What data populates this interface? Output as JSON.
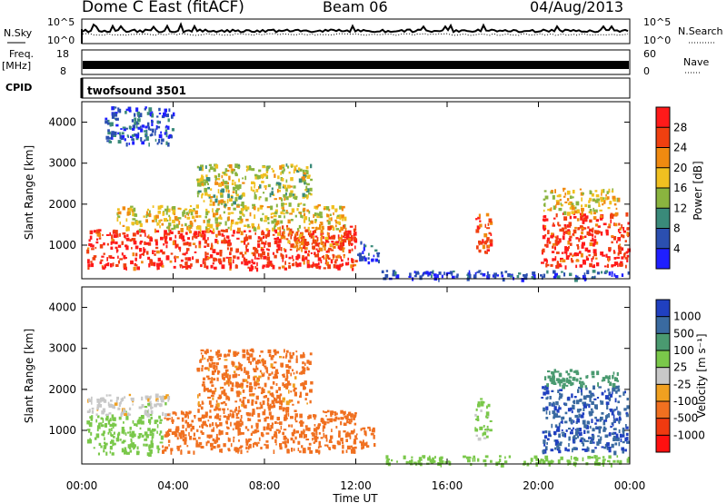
{
  "header": {
    "station": "Dome C East (fitACF)",
    "beam": "Beam 06",
    "date": "04/Aug/2013"
  },
  "strips": {
    "nsky_label": "N.Sky",
    "nsky_top_tick": "10^5",
    "nsky_bottom_tick": "10^0",
    "nsearch_label": "N.Search",
    "nsearch_top_tick": "10^5",
    "nsearch_bottom_tick": "10^0",
    "freq_label": "Freq.",
    "freq_unit": "[MHz]",
    "freq_top_tick": "18",
    "freq_bottom_tick": "8",
    "nave_label": "Nave",
    "nave_top_tick": "60",
    "nave_bottom_tick": "0",
    "cpid_label": "CPID",
    "cpid_value": "twofsound 3501"
  },
  "colorbars": {
    "power": {
      "label": "Power [dB]",
      "ticks": [
        "4",
        "8",
        "12",
        "16",
        "20",
        "24",
        "28"
      ],
      "colors": [
        "#1f1fff",
        "#2b4fb0",
        "#3a8a7a",
        "#8ab43f",
        "#f0c020",
        "#f08a10",
        "#f04010",
        "#ff1a1a"
      ]
    },
    "velocity": {
      "label": "Velocity [m s⁻¹]",
      "ticks": [
        "1000",
        "500",
        "100",
        "25",
        "-25",
        "-100",
        "-500",
        "-1000"
      ],
      "colors": [
        "#2040c0",
        "#3a6aa0",
        "#4a9a70",
        "#7ac84a",
        "#c8c8c8",
        "#f0a020",
        "#f07020",
        "#f03a10",
        "#ff1010"
      ]
    }
  },
  "chart_data": [
    {
      "type": "heatmap",
      "title": "Power",
      "xlabel": "",
      "ylabel": "Slant Range [km]",
      "xlim": [
        0,
        24
      ],
      "ylim": [
        180,
        4500
      ],
      "x_ticks": [
        "00:00",
        "04:00",
        "08:00",
        "12:00",
        "16:00",
        "20:00",
        "00:00"
      ],
      "y_ticks": [
        "1000",
        "2000",
        "3000",
        "4000"
      ],
      "regions": [
        {
          "t0": 0.2,
          "t1": 12.0,
          "r0": 450,
          "r1": 1400,
          "value": 28
        },
        {
          "t0": 1.5,
          "t1": 11.5,
          "r0": 1400,
          "r1": 2000,
          "value": 18
        },
        {
          "t0": 5.0,
          "t1": 10.0,
          "r0": 2000,
          "r1": 3000,
          "value": 16
        },
        {
          "t0": 8.5,
          "t1": 12.0,
          "r0": 900,
          "r1": 1500,
          "value": 24
        },
        {
          "t0": 12.0,
          "t1": 13.0,
          "r0": 600,
          "r1": 1100,
          "value": 6
        },
        {
          "t0": 13.0,
          "t1": 24.0,
          "r0": 200,
          "r1": 400,
          "value": 5
        },
        {
          "t0": 17.2,
          "t1": 17.9,
          "r0": 800,
          "r1": 1800,
          "value": 26
        },
        {
          "t0": 20.1,
          "t1": 23.9,
          "r0": 500,
          "r1": 1800,
          "value": 28
        },
        {
          "t0": 20.2,
          "t1": 23.5,
          "r0": 1800,
          "r1": 2400,
          "value": 18
        },
        {
          "t0": 1.0,
          "t1": 4.0,
          "r0": 3500,
          "r1": 4400,
          "value": 6
        }
      ]
    },
    {
      "type": "heatmap",
      "title": "Velocity",
      "xlabel": "Time UT",
      "ylabel": "Slant Range [km]",
      "xlim": [
        0,
        24
      ],
      "ylim": [
        180,
        4500
      ],
      "x_ticks": [
        "00:00",
        "04:00",
        "08:00",
        "12:00",
        "16:00",
        "20:00",
        "00:00"
      ],
      "y_ticks": [
        "1000",
        "2000",
        "3000",
        "4000"
      ],
      "regions": [
        {
          "t0": 0.2,
          "t1": 3.5,
          "r0": 450,
          "r1": 1400,
          "value": 60
        },
        {
          "t0": 0.2,
          "t1": 4.0,
          "r0": 1400,
          "r1": 1900,
          "value": 0
        },
        {
          "t0": 3.5,
          "t1": 12.0,
          "r0": 500,
          "r1": 1500,
          "value": -200
        },
        {
          "t0": 5.0,
          "t1": 10.0,
          "r0": 1500,
          "r1": 3000,
          "value": -150
        },
        {
          "t0": 12.0,
          "t1": 12.8,
          "r0": 600,
          "r1": 1100,
          "value": -200
        },
        {
          "t0": 13.0,
          "t1": 24.0,
          "r0": 200,
          "r1": 400,
          "value": 60
        },
        {
          "t0": 17.2,
          "t1": 17.9,
          "r0": 800,
          "r1": 1800,
          "value": 40
        },
        {
          "t0": 20.1,
          "t1": 23.9,
          "r0": 500,
          "r1": 2100,
          "value": 900
        },
        {
          "t0": 20.2,
          "t1": 23.5,
          "r0": 2100,
          "r1": 2500,
          "value": 200
        }
      ]
    }
  ]
}
